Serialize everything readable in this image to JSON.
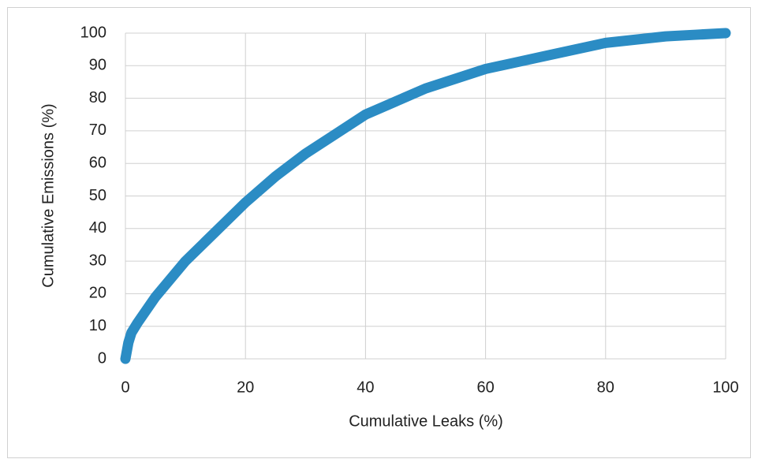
{
  "chart_data": {
    "type": "line",
    "x_label": "Cumulative Leaks (%)",
    "y_label": "Cumulative Emissions (%)",
    "series": [
      {
        "name": "Cumulative Emissions",
        "color": "#2b8cc4",
        "x": [
          0,
          0.5,
          1,
          2,
          5,
          10,
          15,
          20,
          25,
          30,
          35,
          40,
          45,
          50,
          55,
          60,
          65,
          70,
          75,
          80,
          85,
          90,
          95,
          100
        ],
        "values": [
          0,
          5,
          8,
          11,
          19,
          30,
          39,
          48,
          56,
          63,
          69,
          75,
          79,
          83,
          86,
          89,
          91,
          93,
          95,
          97,
          98,
          99,
          99.5,
          100
        ]
      }
    ],
    "xlim": [
      0,
      100
    ],
    "xticks": [
      0,
      20,
      40,
      60,
      80,
      100
    ],
    "ylim": [
      0,
      100
    ],
    "yticks": [
      0,
      10,
      20,
      30,
      40,
      50,
      60,
      70,
      80,
      90,
      100
    ],
    "grid": true
  }
}
